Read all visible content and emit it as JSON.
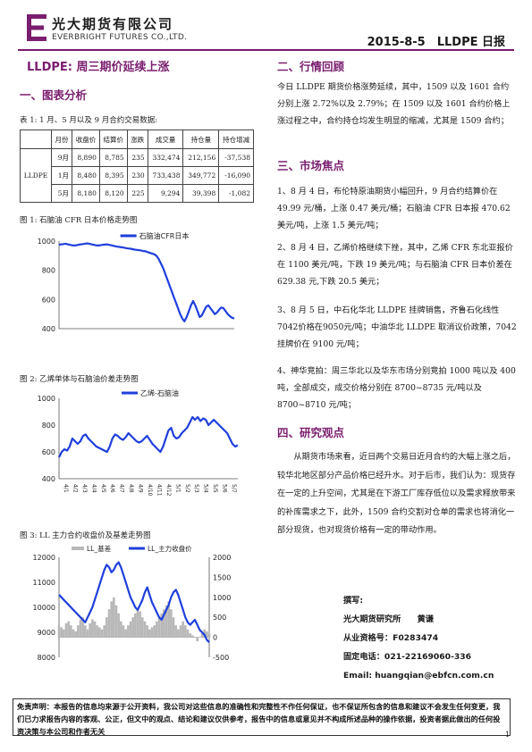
{
  "header": {
    "brand_cn": "光大期货有限公司",
    "brand_en": "EVERBRIGHT FUTURES CO.,LTD.",
    "report_title": "2015-8-5　LLDPE 日报",
    "accent_color": "#7a1d6e"
  },
  "main_title": "LLDPE: 周三期价延续上涨",
  "sections": {
    "chart_analysis": "一、图表分析",
    "market_review": "二、行情回顾",
    "market_focus": "三、市场焦点",
    "research_view": "四、研究观点"
  },
  "table": {
    "caption": "表 1: 1 月、5 月以及 9 月合约交易数据:",
    "headers": [
      "",
      "月份",
      "收盘价",
      "结算价",
      "涨跌",
      "成交量",
      "持仓量",
      "持仓增减"
    ],
    "product": "LLDPE",
    "rows": [
      [
        "9月",
        "8,890",
        "8,785",
        "235",
        "332,474",
        "212,156",
        "-37,538"
      ],
      [
        "1月",
        "8,480",
        "8,395",
        "230",
        "733,438",
        "349,772",
        "-16,090"
      ],
      [
        "5月",
        "8,180",
        "8,120",
        "225",
        "9,294",
        "39,398",
        "-1,082"
      ]
    ]
  },
  "figures": {
    "fig1_caption": "图 1: 石脑油 CFR 日本价格走势图",
    "fig2_caption": "图 2: 乙烯单体与石脑油价差走势图",
    "fig3_caption": "图 3: LL 主力合约收盘价及基差走势图"
  },
  "chart_data": [
    {
      "type": "line",
      "series": [
        {
          "name": "石脑油CFR日本",
          "color": "#1f3fdc",
          "values": [
            975,
            978,
            980,
            982,
            978,
            975,
            972,
            970,
            972,
            975,
            978,
            980,
            982,
            985,
            982,
            978,
            975,
            972,
            970,
            972,
            974,
            976,
            978,
            975,
            972,
            968,
            965,
            962,
            960,
            958,
            955,
            952,
            950,
            948,
            945,
            942,
            940,
            938,
            935,
            932,
            930,
            925,
            920,
            915,
            910,
            900,
            880,
            850,
            820,
            780,
            740,
            700,
            660,
            620,
            580,
            540,
            500,
            470,
            450,
            480,
            520,
            560,
            590,
            560,
            520,
            480,
            490,
            520,
            550,
            560,
            540,
            520,
            500,
            510,
            530,
            545,
            540,
            520,
            500,
            485,
            475,
            470
          ]
        }
      ],
      "ylim": [
        400,
        1000
      ],
      "yticks": [
        400,
        600,
        800,
        1000
      ],
      "grid": false
    },
    {
      "type": "line",
      "series": [
        {
          "name": "乙烯-石脑油",
          "color": "#1f3fdc",
          "values": [
            560,
            600,
            620,
            610,
            640,
            700,
            680,
            660,
            680,
            720,
            730,
            700,
            680,
            660,
            640,
            630,
            620,
            610,
            600,
            640,
            700,
            730,
            720,
            700,
            690,
            710,
            740,
            720,
            700,
            680,
            670,
            680,
            700,
            720,
            690,
            660,
            640,
            620,
            600,
            640,
            700,
            760,
            780,
            720,
            700,
            710,
            740,
            760,
            780,
            820,
            860,
            840,
            860,
            830,
            850,
            840,
            800,
            820,
            840,
            820,
            800,
            780,
            760,
            740,
            700,
            660,
            640,
            650
          ]
        }
      ],
      "ylim": [
        400,
        1000
      ],
      "yticks": [
        400,
        600,
        800,
        1000
      ],
      "x_tick_labels": [
        "4/1",
        "4/2",
        "4/3",
        "4/4",
        "4/5",
        "4/6",
        "4/7",
        "4/8",
        "4/9",
        "4/10",
        "4/11",
        "4/12",
        "5/1",
        "5/2",
        "5/3",
        "5/4",
        "5/5",
        "5/6",
        "5/7"
      ],
      "grid": false
    },
    {
      "type": "line",
      "series": [
        {
          "name": "LL_基差",
          "axis": "right",
          "kind": "area",
          "color": "#b8b8b8",
          "values": [
            300,
            250,
            200,
            350,
            400,
            300,
            200,
            150,
            300,
            450,
            500,
            300,
            200,
            350,
            450,
            400,
            300,
            250,
            200,
            300,
            500,
            700,
            900,
            1000,
            800,
            600,
            400,
            300,
            200,
            300,
            400,
            500,
            600,
            700,
            650,
            500,
            400,
            300,
            200,
            250,
            300,
            400,
            500,
            600,
            700,
            800,
            900,
            700,
            500,
            300,
            200,
            300,
            400,
            300,
            200,
            100,
            50,
            0,
            -100,
            0,
            100,
            200,
            150,
            100
          ]
        },
        {
          "name": "LL_主力收盘价",
          "axis": "left",
          "kind": "line",
          "color": "#1f3fdc",
          "values": [
            10500,
            10400,
            10300,
            10200,
            10100,
            10000,
            9900,
            9800,
            9700,
            9600,
            9500,
            9400,
            9600,
            9800,
            10000,
            10300,
            10600,
            10900,
            11200,
            11500,
            11700,
            11600,
            11400,
            11500,
            11700,
            11800,
            11600,
            11300,
            11000,
            10700,
            10400,
            10200,
            10000,
            9900,
            10100,
            10300,
            10600,
            10800,
            10500,
            10200,
            10000,
            9800,
            9600,
            9500,
            9700,
            9900,
            10100,
            10400,
            10600,
            10700,
            10500,
            10200,
            9900,
            9600,
            9400,
            9300,
            9400,
            9500,
            9300,
            9100,
            9000,
            8900,
            8700,
            8600
          ]
        }
      ],
      "ylim": [
        8000,
        12000
      ],
      "yticks": [
        8000,
        9000,
        10000,
        11000,
        12000
      ],
      "y2lim": [
        -500,
        2000
      ],
      "y2ticks": [
        -500,
        0,
        500,
        1000,
        1500,
        2000
      ],
      "grid": false
    }
  ],
  "market_review": "今日 LLDPE 期货价格涨势延续，其中，1509 以及 1601 合约分别上涨 2.72%以及 2.79%；在 1509 以及 1601 合约价格上涨过程之中，合约持仓均发生明显的缩减，尤其是 1509 合约；",
  "focus": [
    "1、8 月 4 日，布伦特原油期货小幅回升，9 月合约结算价在 49.99 元/桶，上涨 0.47 美元/桶；石脑油 CFR 日本报 470.62 美元/吨，上涨 1.5 美元/吨；",
    "2、8 月 4 日，乙烯价格继续下挫，其中，乙烯 CFR 东北亚报价在 1100 美元/吨，下跌 19 美元/吨；与石脑油 CFR 日本价差在 629.38 元,下跌 20.5 美元；",
    "3、8 月 5 日，中石化华北 LLDPE 挂牌销售，齐鲁石化线性7042价格在9050元/吨；中油华北 LLDPE 取消议价政策，7042 挂牌价在 9100 元/吨；",
    "4、神华竞拍：周三华北以及华东市场分别竞拍 1000 吨以及 400 吨，全部成交，成交价格分别在 8700~8735 元/吨以及 8700~8710 元/吨；"
  ],
  "research_view": "　　从期货市场来看，近日两个交易日近月合约的大幅上涨之后，较华北地区部分产品价格已经升水。对于后市，我们认为：现货存在一定的上升空间，尤其是在下游工厂库存低位以及需求释放带来的补库需求之下，此外，1509 合约交割对仓单的需求也将消化一部分现货，也对现货价格有一定的带动作用。",
  "author": {
    "label": "撰写:",
    "org": "光大期货研究所　　黄谦",
    "license": "从业资格号：F0283474",
    "phone": "固定电话：021-22169060-336",
    "email": "Email:  huangqian@ebfcn.com.cn"
  },
  "disclaimer": "免责声明：本报告的信息均来源于公开资料，我公司对这些信息的准确性和完整性不作任何保证，也不保证所包含的信息和建议不会发生任何变更，我们已力求报告内容的客观、公正，但文中的观点、结论和建议仅供参考，报告中的信息或意见并不构成所述品种的操作依据，投资者据此做出的任何投资决策与本公司和作者无关",
  "page_number": "1"
}
